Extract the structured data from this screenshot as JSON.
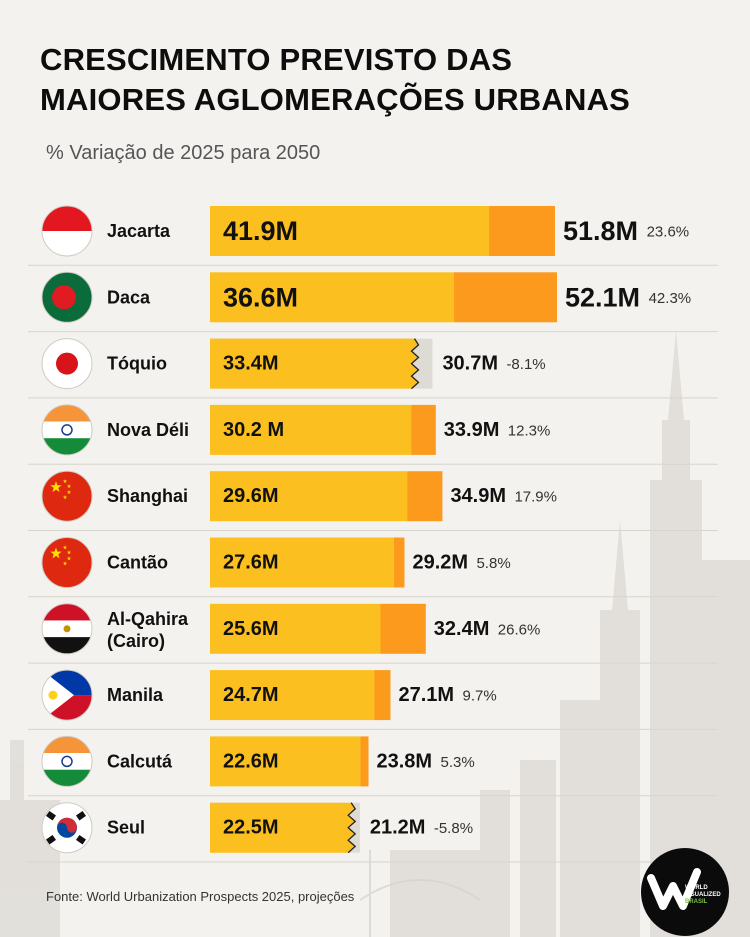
{
  "title_lines": [
    "CRESCIMENTO PREVISTO DAS",
    "MAIORES AGLOMERAÇÕES URBANAS"
  ],
  "subtitle": "% Variação de 2025 para 2050",
  "source": "Fonte: World Urbanization Prospects 2025, projeções",
  "logo": {
    "lines": [
      "WORLD",
      "VISUALIZED",
      "BRASIL"
    ]
  },
  "colors": {
    "base_bar": "#fbbf1f",
    "growth_bar": "#fb9a1c",
    "decline_bar": "#dedbd5",
    "row_separator": "#d8d4ce",
    "text": "#111111",
    "pct_text": "#333333"
  },
  "chart_data": {
    "type": "bar",
    "title": "CRESCIMENTO PREVISTO DAS MAIORES AGLOMERAÇÕES URBANAS",
    "subtitle": "% Variação de 2025 para 2050",
    "x_range": [
      0,
      52.1
    ],
    "series": [
      {
        "name": "2025",
        "values": [
          41.9,
          36.6,
          33.4,
          30.2,
          29.6,
          27.6,
          25.6,
          24.7,
          22.6,
          22.5
        ]
      },
      {
        "name": "2050",
        "values": [
          51.8,
          52.1,
          30.7,
          33.9,
          34.9,
          29.2,
          32.4,
          27.1,
          23.8,
          21.2
        ]
      }
    ],
    "rows": [
      {
        "city": [
          "Jacarta"
        ],
        "flag": "indonesia-flag-icon",
        "v2025": 41.9,
        "v2050": 51.8,
        "label2025": "41.9M",
        "label2050": "51.8M",
        "pct": "23.6%",
        "size": "large"
      },
      {
        "city": [
          "Daca"
        ],
        "flag": "bangladesh-flag-icon",
        "v2025": 36.6,
        "v2050": 52.1,
        "label2025": "36.6M",
        "label2050": "52.1M",
        "pct": "42.3%",
        "size": "large"
      },
      {
        "city": [
          "Tóquio"
        ],
        "flag": "japan-flag-icon",
        "v2025": 33.4,
        "v2050": 30.7,
        "label2025": "33.4M",
        "label2050": "30.7M",
        "pct": "-8.1%",
        "size": "normal"
      },
      {
        "city": [
          "Nova Déli"
        ],
        "flag": "india-flag-icon",
        "v2025": 30.2,
        "v2050": 33.9,
        "label2025": "30.2 M",
        "label2050": "33.9M",
        "pct": "12.3%",
        "size": "normal"
      },
      {
        "city": [
          "Shanghai"
        ],
        "flag": "china-flag-icon",
        "v2025": 29.6,
        "v2050": 34.9,
        "label2025": "29.6M",
        "label2050": "34.9M",
        "pct": "17.9%",
        "size": "normal"
      },
      {
        "city": [
          "Cantão"
        ],
        "flag": "china-flag-icon",
        "v2025": 27.6,
        "v2050": 29.2,
        "label2025": "27.6M",
        "label2050": "29.2M",
        "pct": "5.8%",
        "size": "normal"
      },
      {
        "city": [
          "Al-Qahira",
          "(Cairo)"
        ],
        "flag": "egypt-flag-icon",
        "v2025": 25.6,
        "v2050": 32.4,
        "label2025": "25.6M",
        "label2050": "32.4M",
        "pct": "26.6%",
        "size": "normal"
      },
      {
        "city": [
          "Manila"
        ],
        "flag": "philippines-flag-icon",
        "v2025": 24.7,
        "v2050": 27.1,
        "label2025": "24.7M",
        "label2050": "27.1M",
        "pct": "9.7%",
        "size": "normal"
      },
      {
        "city": [
          "Calcutá"
        ],
        "flag": "india-flag-icon",
        "v2025": 22.6,
        "v2050": 23.8,
        "label2025": "22.6M",
        "label2050": "23.8M",
        "pct": "5.3%",
        "size": "normal"
      },
      {
        "city": [
          "Seul"
        ],
        "flag": "south-korea-flag-icon",
        "v2025": 22.5,
        "v2050": 21.2,
        "label2025": "22.5M",
        "label2050": "21.2M",
        "pct": "-5.8%",
        "size": "normal"
      }
    ]
  }
}
